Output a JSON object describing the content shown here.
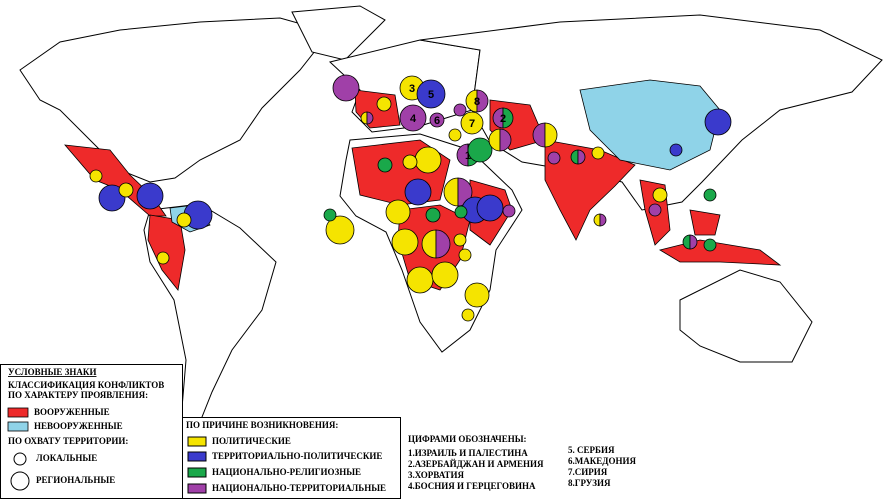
{
  "legend": {
    "title": "УСЛОВНЫЕ ЗНАКИ",
    "classification_title": [
      "КЛАССИФИКАЦИЯ КОНФЛИКТОВ",
      "ПО ХАРАКТЕРУ ПРОЯВЛЕНИЯ:"
    ],
    "classification_items": [
      "ВООРУЖЕННЫЕ",
      "НЕВООРУЖЕННЫЕ"
    ],
    "territory_title": "ПО ОХВАТУ ТЕРРИТОРИИ:",
    "territory_items": [
      "ЛОКАЛЬНЫЕ",
      "РЕГИОНАЛЬНЫЕ"
    ]
  },
  "causes": {
    "title": "ПО ПРИЧИНЕ ВОЗНИКНОВЕНИЯ:",
    "items": [
      "ПОЛИТИЧЕСКИЕ",
      "ТЕРРИТОРИАЛЬНО-ПОЛИТИЧЕСКИЕ",
      "НАЦИОНАЛЬНО-РЕЛИГИОЗНЫЕ",
      "НАЦИОНАЛЬНО-ТЕРРИТОРИАЛЬНЫЕ"
    ]
  },
  "numbers": {
    "title": "ЦИФРАМИ ОБОЗНАЧЕНЫ:",
    "items": [
      "1.ИЗРАИЛЬ И ПАЛЕСТИНА",
      "2.АЗЕРБАЙДЖАН И АРМЕНИЯ",
      "3.ХОРВАТИЯ",
      "4.БОСНИЯ И ГЕРЦЕГОВИНА",
      "5. СЕРБИЯ",
      "6.МАКЕДОНИЯ",
      "7.СИРИЯ",
      "8.ГРУЗИЯ"
    ]
  },
  "map_labels": [
    "3",
    "5",
    "8",
    "2",
    "7",
    "4",
    "6",
    "1"
  ]
}
